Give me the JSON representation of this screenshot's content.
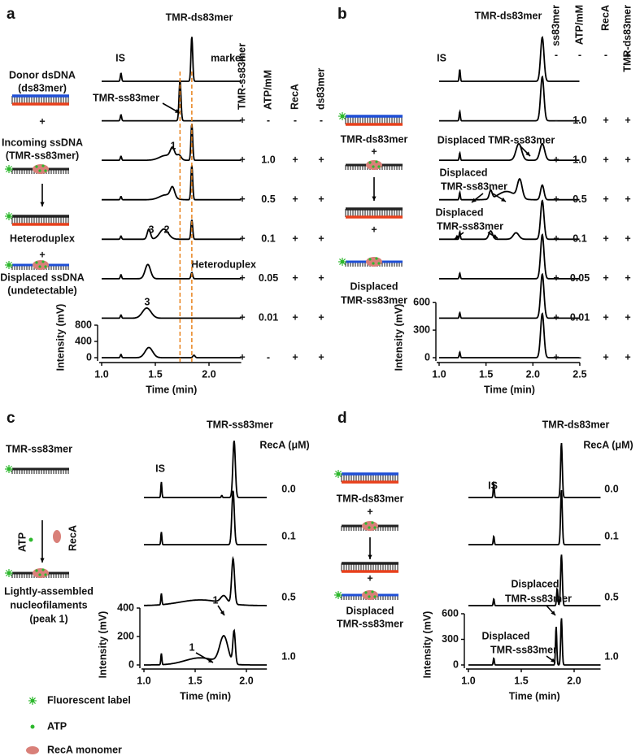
{
  "panels": [
    {
      "label": "a",
      "xlim": [
        1.0,
        2.3
      ],
      "xticks": [
        {
          "value": 1.0,
          "label": "1.0"
        },
        1.5,
        {
          "value": 2.0,
          "label": "2.0"
        }
      ],
      "yticks": [
        0,
        400,
        800
      ],
      "y_label": "Intensity (mV)",
      "x_label": "Time (min)",
      "traces": [
        {
          "peaks": [
            [
              1.18,
              200,
              0.006
            ],
            [
              1.84,
              1100,
              0.008
            ]
          ]
        },
        {
          "peaks": [
            [
              1.18,
              150,
              0.006
            ],
            [
              1.73,
              1000,
              0.009
            ]
          ]
        },
        {
          "peaks": [
            [
              1.18,
              100,
              0.006
            ],
            [
              1.6,
              120,
              0.06
            ],
            [
              1.66,
              250,
              0.02
            ],
            [
              1.72,
              120,
              0.02
            ],
            [
              1.84,
              900,
              0.008
            ]
          ]
        },
        {
          "peaks": [
            [
              1.18,
              80,
              0.006
            ],
            [
              1.6,
              120,
              0.06
            ],
            [
              1.66,
              250,
              0.02
            ],
            [
              1.84,
              850,
              0.008
            ]
          ]
        },
        {
          "peaks": [
            [
              1.18,
              80,
              0.006
            ],
            [
              1.44,
              250,
              0.015
            ],
            [
              1.58,
              250,
              0.04
            ],
            [
              1.84,
              480,
              0.008
            ]
          ]
        },
        {
          "peaks": [
            [
              1.18,
              100,
              0.006
            ],
            [
              1.43,
              350,
              0.025
            ],
            [
              1.84,
              150,
              0.008
            ]
          ]
        },
        {
          "peaks": [
            [
              1.18,
              80,
              0.006
            ],
            [
              1.42,
              250,
              0.04
            ]
          ]
        },
        {
          "peaks": [
            [
              1.18,
              80,
              0.006
            ],
            [
              1.44,
              250,
              0.035
            ],
            [
              1.86,
              60,
              0.01
            ]
          ]
        }
      ],
      "columns": {
        "headers": [
          "TMR-ss83mer",
          "ATP/mM",
          "RecA",
          "ds83mer"
        ],
        "rows": [
          [
            "+",
            "-",
            "-",
            "-"
          ],
          [
            "+",
            "1.0",
            "+",
            "+"
          ],
          [
            "+",
            "0.5",
            "+",
            "+"
          ],
          [
            "+",
            "0.1",
            "+",
            "+"
          ],
          [
            "+",
            "0.05",
            "+",
            "+"
          ],
          [
            "+",
            "0.01",
            "+",
            "+"
          ],
          [
            "+",
            "-",
            "+",
            "+"
          ]
        ]
      },
      "annotations": [
        "TMR-ds83mer",
        "IS",
        "marker",
        "TMR-ss83mer",
        "1",
        "3",
        "2",
        "Heteroduplex",
        "3"
      ],
      "schematic": [
        "Donor dsDNA",
        "(ds83mer)",
        "+",
        "Incoming ssDNA",
        "(TMR-ss83mer)",
        "Heteroduplex",
        "+",
        "Displaced ssDNA",
        "(undetectable)"
      ]
    },
    {
      "label": "b",
      "xlim": [
        1.0,
        2.5
      ],
      "xticks": [
        {
          "value": 1.0,
          "label": "1.0"
        },
        1.5,
        {
          "value": 2.0,
          "label": "2.0"
        },
        2.5
      ],
      "yticks": [
        0,
        300,
        600
      ],
      "y_label": "Intensity (mV)",
      "x_label": "Time (min)",
      "traces": [
        {
          "peaks": [
            [
              1.22,
              130,
              0.006
            ],
            [
              2.1,
              480,
              0.018
            ]
          ]
        },
        {
          "peaks": [
            [
              1.22,
              100,
              0.006
            ],
            [
              2.1,
              480,
              0.018
            ]
          ]
        },
        {
          "peaks": [
            [
              1.22,
              80,
              0.006
            ],
            [
              1.85,
              180,
              0.03
            ],
            [
              2.1,
              180,
              0.025
            ]
          ]
        },
        {
          "peaks": [
            [
              1.22,
              80,
              0.006
            ],
            [
              1.55,
              90,
              0.015
            ],
            [
              1.72,
              90,
              0.09
            ],
            [
              1.86,
              200,
              0.025
            ],
            [
              2.1,
              160,
              0.018
            ]
          ]
        },
        {
          "peaks": [
            [
              1.22,
              80,
              0.006
            ],
            [
              1.55,
              90,
              0.02
            ],
            [
              1.82,
              70,
              0.03
            ],
            [
              2.1,
              420,
              0.018
            ]
          ]
        },
        {
          "peaks": [
            [
              1.22,
              60,
              0.006
            ],
            [
              2.1,
              480,
              0.018
            ]
          ]
        },
        {
          "peaks": [
            [
              1.22,
              60,
              0.006
            ],
            [
              2.1,
              480,
              0.018
            ]
          ]
        },
        {
          "peaks": [
            [
              1.22,
              60,
              0.006
            ],
            [
              2.1,
              480,
              0.018
            ]
          ]
        }
      ],
      "columns": {
        "headers": [
          "ss83mer",
          "ATP/mM",
          "RecA",
          "TMR-ds83mer"
        ],
        "rows": [
          [
            "-",
            "-",
            "-",
            "+"
          ],
          [
            "-",
            "1.0",
            "+",
            "+"
          ],
          [
            "+",
            "1.0",
            "+",
            "+"
          ],
          [
            "+",
            "0.5",
            "+",
            "+"
          ],
          [
            "+",
            "0.1",
            "+",
            "+"
          ],
          [
            "+",
            "0.05",
            "+",
            "+"
          ],
          [
            "+",
            "0.01",
            "+",
            "+"
          ],
          [
            "+",
            "-",
            "+",
            "+"
          ]
        ]
      },
      "annotations": [
        "TMR-ds83mer",
        "IS",
        "Displaced TMR-ss83mer",
        "Displaced",
        "TMR-ss83mer",
        "Displaced",
        "TMR-ss83mer"
      ],
      "schematic": [
        "TMR-ds83mer",
        "+",
        "+",
        "Displaced",
        "TMR-ss83mer"
      ]
    },
    {
      "label": "c",
      "xlim": [
        1.0,
        2.2
      ],
      "xticks": [
        {
          "value": 1.0,
          "label": "1.0"
        },
        1.5,
        {
          "value": 2.0,
          "label": "2.0"
        }
      ],
      "yticks": [
        0,
        200,
        400
      ],
      "y_label": "Intensity (mV)",
      "x_label": "Time (min)",
      "traces": [
        {
          "peaks": [
            [
              1.17,
              110,
              0.005
            ],
            [
              1.76,
              15,
              0.005
            ],
            [
              1.88,
              400,
              0.012
            ]
          ]
        },
        {
          "peaks": [
            [
              1.17,
              90,
              0.005
            ],
            [
              1.87,
              380,
              0.012
            ]
          ]
        },
        {
          "peaks": [
            [
              1.17,
              80,
              0.005
            ],
            [
              1.55,
              40,
              0.2
            ],
            [
              1.78,
              50,
              0.03
            ],
            [
              1.87,
              320,
              0.014
            ]
          ]
        },
        {
          "peaks": [
            [
              1.17,
              80,
              0.005
            ],
            [
              1.55,
              50,
              0.15
            ],
            [
              1.78,
              190,
              0.04
            ],
            [
              1.88,
              230,
              0.012
            ]
          ]
        }
      ],
      "columns": {
        "headers": [
          "RecA (μM)"
        ],
        "rows": [
          [
            "0.0"
          ],
          [
            "0.1"
          ],
          [
            "0.5"
          ],
          [
            "1.0"
          ]
        ]
      },
      "annotations": [
        "TMR-ss83mer",
        "IS",
        "1",
        "1"
      ],
      "schematic": [
        "TMR-ss83mer",
        "ATP",
        "RecA",
        "Lightly-assembled",
        "nucleofilaments",
        "(peak 1)"
      ]
    },
    {
      "label": "d",
      "xlim": [
        1.0,
        2.25
      ],
      "xticks": [
        {
          "value": 1.0,
          "label": "1.0"
        },
        1.5,
        {
          "value": 2.0,
          "label": "2.0"
        }
      ],
      "yticks": [
        0,
        300,
        600
      ],
      "y_label": "Intensity (mV)",
      "x_label": "Time (min)",
      "traces": [
        {
          "peaks": [
            [
              1.24,
              170,
              0.005
            ],
            [
              1.88,
              640,
              0.008
            ]
          ]
        },
        {
          "peaks": [
            [
              1.24,
              100,
              0.005
            ],
            [
              1.88,
              640,
              0.008
            ]
          ]
        },
        {
          "peaks": [
            [
              1.24,
              80,
              0.005
            ],
            [
              1.84,
              200,
              0.006
            ],
            [
              1.88,
              600,
              0.008
            ]
          ]
        },
        {
          "peaks": [
            [
              1.24,
              80,
              0.005
            ],
            [
              1.83,
              450,
              0.006
            ],
            [
              1.88,
              550,
              0.007
            ]
          ]
        }
      ],
      "columns": {
        "headers": [
          "RecA (μM)"
        ],
        "rows": [
          [
            "0.0"
          ],
          [
            "0.1"
          ],
          [
            "0.5"
          ],
          [
            "1.0"
          ]
        ]
      },
      "annotations": [
        "TMR-ds83mer",
        "Displaced",
        "TMR-ss83mer",
        "Displaced",
        "TMR-ss83mer",
        "IS"
      ],
      "schematic": [
        "TMR-ds83mer",
        "+",
        "+",
        "Displaced",
        "TMR-ss83mer"
      ]
    }
  ],
  "legend": [
    "Fluorescent label",
    "ATP",
    "RecA monomer"
  ]
}
